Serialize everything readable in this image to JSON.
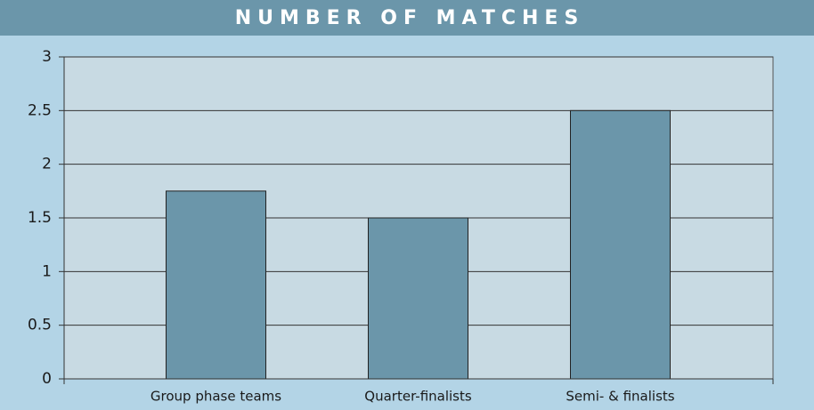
{
  "chart_data": {
    "type": "bar",
    "title": "NUMBER OF MATCHES",
    "categories": [
      "Group phase teams",
      "Quarter-finalists",
      "Semi- & finalists"
    ],
    "values": [
      1.75,
      1.5,
      2.5
    ],
    "color": "#6b96aa",
    "ylim": [
      0,
      3
    ],
    "yticks": [
      0,
      0.5,
      1,
      1.5,
      2,
      2.5,
      3
    ],
    "grid": true
  }
}
